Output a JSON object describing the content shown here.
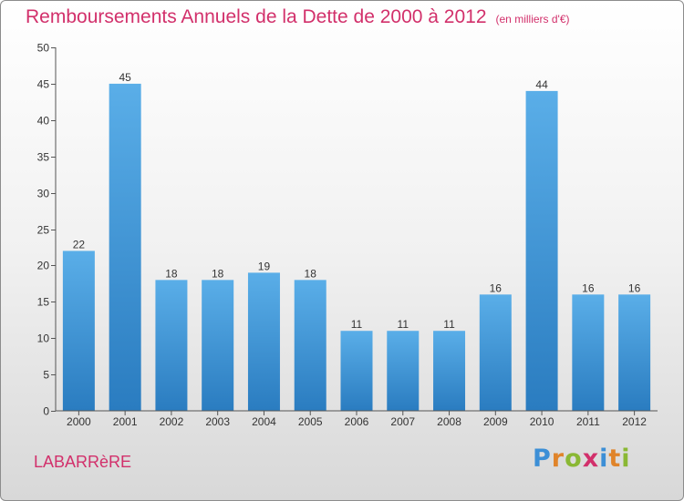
{
  "chart_data": {
    "type": "bar",
    "title": "Remboursements Annuels de la Dette de 2000 à 2012",
    "subtitle": "(en milliers d'€)",
    "categories": [
      "2000",
      "2001",
      "2002",
      "2003",
      "2004",
      "2005",
      "2006",
      "2007",
      "2008",
      "2009",
      "2010",
      "2011",
      "2012"
    ],
    "values": [
      22,
      45,
      18,
      18,
      19,
      18,
      11,
      11,
      11,
      16,
      44,
      16,
      16
    ],
    "ylim": [
      0,
      50
    ],
    "yticks": [
      0,
      5,
      10,
      15,
      20,
      25,
      30,
      35,
      40,
      45,
      50
    ],
    "grid": false,
    "bar_color_top": "#5aaee8",
    "bar_color_bottom": "#2a7cc0"
  },
  "footer": {
    "commune": "LABARRèRE",
    "logo_letters": [
      "P",
      "r",
      "o",
      "x",
      "i",
      "t",
      "i"
    ],
    "logo_colors": [
      "#3c8fd6",
      "#e0842a",
      "#8ab834",
      "#d2306b",
      "#3c8fd6",
      "#e0842a",
      "#8ab834"
    ]
  },
  "colors": {
    "title": "#d2306b",
    "axis": "#555555",
    "text": "#333333"
  }
}
